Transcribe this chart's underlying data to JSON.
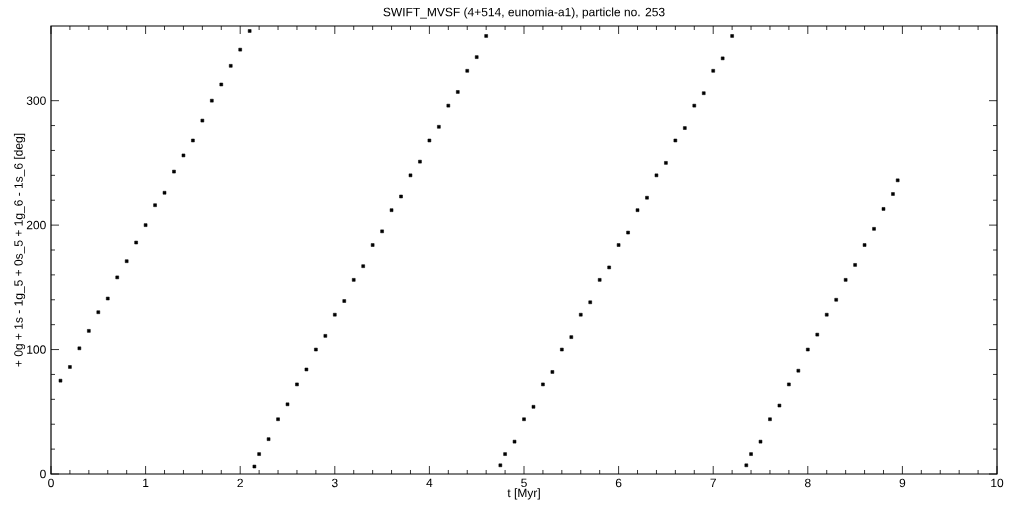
{
  "chart_data": {
    "type": "scatter",
    "title": "SWIFT_MVSF (4+514, eunomia-a1), particle no. 253",
    "xlabel": "t [Myr]",
    "ylabel": "+ 0g + 1s - 1g_5 + 0s_5 + 1g_6 - 1s_6 [deg]",
    "xlim": [
      0,
      10
    ],
    "ylim": [
      0,
      360
    ],
    "xticks": [
      0,
      1,
      2,
      3,
      4,
      5,
      6,
      7,
      8,
      9,
      10
    ],
    "yticks": [
      0,
      100,
      200,
      300
    ],
    "marker": "square",
    "series": [
      {
        "color": "#000000",
        "x": [
          0.1,
          0.2,
          0.3,
          0.4,
          0.5,
          0.6,
          0.7,
          0.8,
          0.9,
          1.0,
          1.1,
          1.2,
          1.3,
          1.4,
          1.5,
          1.6,
          1.7,
          1.8,
          1.9,
          2.0,
          2.1,
          2.15,
          2.2,
          2.3,
          2.4,
          2.5,
          2.6,
          2.7,
          2.8,
          2.9,
          3.0,
          3.1,
          3.2,
          3.3,
          3.4,
          3.5,
          3.6,
          3.7,
          3.8,
          3.9,
          4.0,
          4.1,
          4.2,
          4.3,
          4.4,
          4.5,
          4.6,
          4.75,
          4.8,
          4.9,
          5.0,
          5.1,
          5.2,
          5.3,
          5.4,
          5.5,
          5.6,
          5.7,
          5.8,
          5.9,
          6.0,
          6.1,
          6.2,
          6.3,
          6.4,
          6.5,
          6.6,
          6.7,
          6.8,
          6.9,
          7.0,
          7.1,
          7.2,
          7.35,
          7.4,
          7.5,
          7.6,
          7.7,
          7.8,
          7.9,
          8.0,
          8.1,
          8.2,
          8.3,
          8.4,
          8.5,
          8.6,
          8.7,
          8.8,
          8.9,
          8.95
        ],
        "values": [
          75,
          86,
          101,
          115,
          130,
          141,
          158,
          171,
          186,
          200,
          216,
          226,
          243,
          256,
          268,
          284,
          300,
          313,
          328,
          341,
          356,
          6,
          16,
          28,
          44,
          56,
          72,
          84,
          100,
          111,
          128,
          139,
          156,
          167,
          184,
          195,
          212,
          223,
          240,
          251,
          268,
          279,
          296,
          307,
          324,
          335,
          352,
          7,
          16,
          26,
          44,
          54,
          72,
          82,
          100,
          110,
          128,
          138,
          156,
          166,
          184,
          194,
          212,
          222,
          240,
          250,
          268,
          278,
          296,
          306,
          324,
          334,
          352,
          7,
          16,
          26,
          44,
          55,
          72,
          83,
          100,
          112,
          128,
          140,
          156,
          168,
          184,
          197,
          213,
          225,
          236
        ]
      }
    ]
  }
}
